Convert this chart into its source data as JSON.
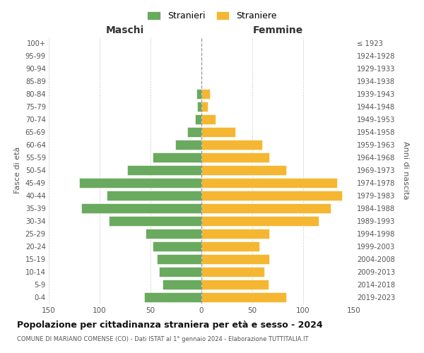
{
  "age_groups": [
    "0-4",
    "5-9",
    "10-14",
    "15-19",
    "20-24",
    "25-29",
    "30-34",
    "35-39",
    "40-44",
    "45-49",
    "50-54",
    "55-59",
    "60-64",
    "65-69",
    "70-74",
    "75-79",
    "80-84",
    "85-89",
    "90-94",
    "95-99",
    "100+"
  ],
  "birth_years": [
    "2019-2023",
    "2014-2018",
    "2009-2013",
    "2004-2008",
    "1999-2003",
    "1994-1998",
    "1989-1993",
    "1984-1988",
    "1979-1983",
    "1974-1978",
    "1969-1973",
    "1964-1968",
    "1959-1963",
    "1954-1958",
    "1949-1953",
    "1944-1948",
    "1939-1943",
    "1934-1938",
    "1929-1933",
    "1924-1928",
    "≤ 1923"
  ],
  "maschi": [
    56,
    38,
    42,
    44,
    48,
    55,
    91,
    118,
    93,
    120,
    73,
    48,
    26,
    14,
    6,
    4,
    5,
    0,
    0,
    0,
    0
  ],
  "femmine": [
    83,
    66,
    62,
    67,
    57,
    67,
    115,
    127,
    138,
    133,
    83,
    67,
    60,
    33,
    14,
    6,
    8,
    0,
    0,
    0,
    0
  ],
  "male_color": "#6aaa5e",
  "female_color": "#f5b731",
  "title_main": "Popolazione per cittadinanza straniera per età e sesso - 2024",
  "title_sub": "COMUNE DI MARIANO COMENSE (CO) - Dati ISTAT al 1° gennaio 2024 - Elaborazione TUTTITALIA.IT",
  "legend_male": "Stranieri",
  "legend_female": "Straniere",
  "header_left": "Maschi",
  "header_right": "Femmine",
  "ylabel_left": "Fasce di età",
  "ylabel_right": "Anni di nascita",
  "xlim": 150,
  "background_color": "#ffffff",
  "grid_color": "#cccccc"
}
